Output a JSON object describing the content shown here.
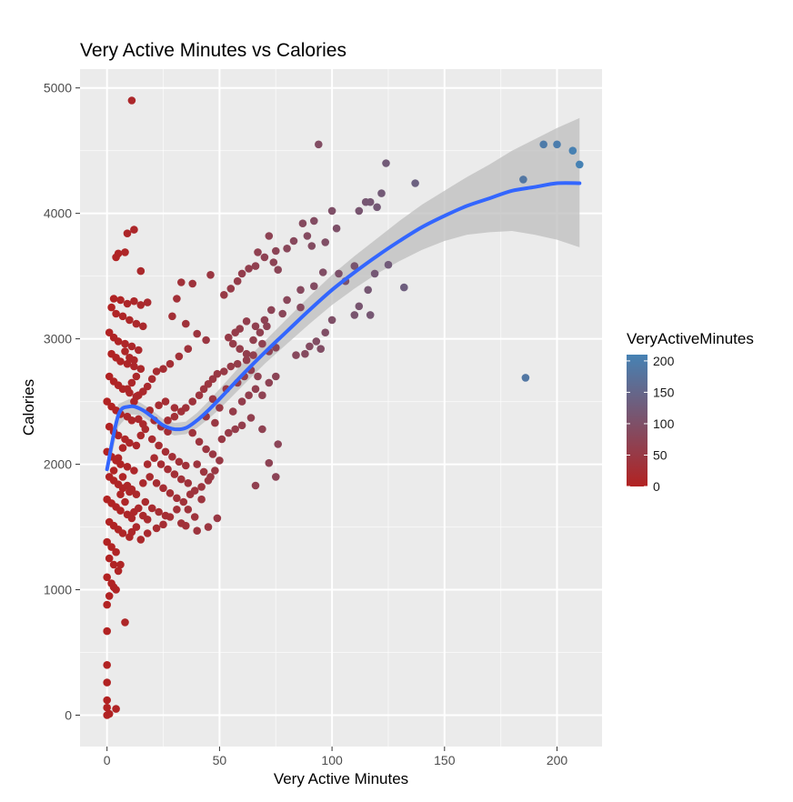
{
  "chart_data": {
    "type": "scatter",
    "title": "Very Active Minutes vs Calories",
    "xlabel": "Very Active Minutes",
    "ylabel": "Calories",
    "xlim": [
      -12,
      220
    ],
    "ylim": [
      -250,
      5150
    ],
    "xticks": [
      0,
      50,
      100,
      150,
      200
    ],
    "yticks": [
      0,
      1000,
      2000,
      3000,
      4000,
      5000
    ],
    "grid": true,
    "legend": {
      "title": "VeryActiveMinutes",
      "type": "colorbar",
      "placement": "right",
      "range": [
        0,
        210
      ],
      "ticks": [
        0,
        50,
        100,
        150,
        200
      ],
      "low_color": "#b22222",
      "high_color": "#4682b4"
    },
    "colors": {
      "panel": "#ebebeb",
      "grid_major": "#ffffff",
      "smooth_line": "#3366ff",
      "ribbon": "#bdbdbd"
    },
    "smooth": {
      "x": [
        0,
        5,
        10,
        15,
        20,
        25,
        30,
        35,
        40,
        45,
        50,
        60,
        70,
        80,
        90,
        100,
        110,
        120,
        130,
        140,
        150,
        160,
        170,
        180,
        190,
        200,
        210
      ],
      "y": [
        1960,
        2390,
        2460,
        2440,
        2380,
        2310,
        2280,
        2290,
        2350,
        2430,
        2520,
        2710,
        2890,
        3060,
        3230,
        3390,
        3530,
        3660,
        3780,
        3890,
        3980,
        4060,
        4120,
        4180,
        4210,
        4240,
        4240
      ],
      "lower": [
        1900,
        2300,
        2400,
        2390,
        2330,
        2260,
        2230,
        2240,
        2290,
        2360,
        2440,
        2620,
        2800,
        2960,
        3120,
        3270,
        3400,
        3520,
        3620,
        3710,
        3780,
        3830,
        3850,
        3860,
        3830,
        3790,
        3730
      ],
      "upper": [
        2020,
        2480,
        2520,
        2490,
        2430,
        2360,
        2330,
        2340,
        2410,
        2500,
        2600,
        2800,
        2980,
        3160,
        3340,
        3510,
        3660,
        3800,
        3940,
        4070,
        4180,
        4290,
        4390,
        4500,
        4590,
        4680,
        4760
      ]
    },
    "points": [
      [
        11,
        4900
      ],
      [
        94,
        4550
      ],
      [
        124,
        4400
      ],
      [
        137,
        4240
      ],
      [
        100,
        4020
      ],
      [
        92,
        3940
      ],
      [
        115,
        4090
      ],
      [
        112,
        4020
      ],
      [
        120,
        4050
      ],
      [
        117,
        4090
      ],
      [
        122,
        4160
      ],
      [
        102,
        3880
      ],
      [
        87,
        3920
      ],
      [
        89,
        3820
      ],
      [
        83,
        3780
      ],
      [
        91,
        3740
      ],
      [
        97,
        3770
      ],
      [
        80,
        3720
      ],
      [
        75,
        3700
      ],
      [
        72,
        3820
      ],
      [
        67,
        3690
      ],
      [
        70,
        3650
      ],
      [
        74,
        3610
      ],
      [
        76,
        3550
      ],
      [
        66,
        3580
      ],
      [
        63,
        3560
      ],
      [
        60,
        3520
      ],
      [
        58,
        3460
      ],
      [
        55,
        3400
      ],
      [
        52,
        3350
      ],
      [
        125,
        3590
      ],
      [
        119,
        3520
      ],
      [
        110,
        3580
      ],
      [
        103,
        3520
      ],
      [
        106,
        3460
      ],
      [
        96,
        3530
      ],
      [
        92,
        3420
      ],
      [
        86,
        3390
      ],
      [
        80,
        3310
      ],
      [
        86,
        3250
      ],
      [
        78,
        3200
      ],
      [
        73,
        3230
      ],
      [
        70,
        3150
      ],
      [
        66,
        3100
      ],
      [
        62,
        3140
      ],
      [
        59,
        3080
      ],
      [
        57,
        3050
      ],
      [
        54,
        3010
      ],
      [
        132,
        3410
      ],
      [
        116,
        3390
      ],
      [
        112,
        3260
      ],
      [
        117,
        3190
      ],
      [
        110,
        3190
      ],
      [
        100,
        3150
      ],
      [
        97,
        3050
      ],
      [
        93,
        2980
      ],
      [
        90,
        2940
      ],
      [
        95,
        2920
      ],
      [
        88,
        2880
      ],
      [
        84,
        2870
      ],
      [
        75,
        2930
      ],
      [
        72,
        2900
      ],
      [
        69,
        2960
      ],
      [
        65,
        2870
      ],
      [
        62,
        2830
      ],
      [
        58,
        2800
      ],
      [
        55,
        2780
      ],
      [
        52,
        2740
      ],
      [
        49,
        2720
      ],
      [
        47,
        2680
      ],
      [
        45,
        2640
      ],
      [
        43,
        2600
      ],
      [
        186,
        2690
      ],
      [
        185,
        4270
      ],
      [
        194,
        4550
      ],
      [
        200,
        4550
      ],
      [
        207,
        4500
      ],
      [
        210,
        4390
      ],
      [
        46,
        3510
      ],
      [
        38,
        3440
      ],
      [
        33,
        3450
      ],
      [
        31,
        3320
      ],
      [
        29,
        3180
      ],
      [
        35,
        3120
      ],
      [
        40,
        3040
      ],
      [
        44,
        2990
      ],
      [
        36,
        2920
      ],
      [
        32,
        2860
      ],
      [
        28,
        2800
      ],
      [
        25,
        2760
      ],
      [
        22,
        2740
      ],
      [
        20,
        2680
      ],
      [
        18,
        2620
      ],
      [
        16,
        2580
      ],
      [
        14,
        2550
      ],
      [
        12,
        2500
      ],
      [
        41,
        2550
      ],
      [
        38,
        2500
      ],
      [
        35,
        2450
      ],
      [
        33,
        2420
      ],
      [
        30,
        2380
      ],
      [
        27,
        2350
      ],
      [
        64,
        2370
      ],
      [
        60,
        2310
      ],
      [
        57,
        2280
      ],
      [
        69,
        2280
      ],
      [
        76,
        2160
      ],
      [
        72,
        2010
      ],
      [
        75,
        1900
      ],
      [
        66,
        1830
      ],
      [
        50,
        2030
      ],
      [
        48,
        1950
      ],
      [
        45,
        1870
      ],
      [
        42,
        1820
      ],
      [
        37,
        1760
      ],
      [
        34,
        1700
      ],
      [
        31,
        1640
      ],
      [
        28,
        1580
      ],
      [
        25,
        1520
      ],
      [
        22,
        1490
      ],
      [
        49,
        1570
      ],
      [
        45,
        1500
      ],
      [
        40,
        1470
      ],
      [
        35,
        1510
      ],
      [
        18,
        1450
      ],
      [
        15,
        1400
      ],
      [
        9,
        3840
      ],
      [
        12,
        3870
      ],
      [
        5,
        3680
      ],
      [
        4,
        3650
      ],
      [
        8,
        3690
      ],
      [
        15,
        3540
      ],
      [
        3,
        3320
      ],
      [
        6,
        3310
      ],
      [
        9,
        3280
      ],
      [
        12,
        3300
      ],
      [
        15,
        3270
      ],
      [
        18,
        3290
      ],
      [
        2,
        3250
      ],
      [
        4,
        3200
      ],
      [
        7,
        3180
      ],
      [
        10,
        3150
      ],
      [
        13,
        3120
      ],
      [
        16,
        3100
      ],
      [
        1,
        3050
      ],
      [
        3,
        3010
      ],
      [
        5,
        2980
      ],
      [
        8,
        2960
      ],
      [
        11,
        2940
      ],
      [
        14,
        2910
      ],
      [
        2,
        2880
      ],
      [
        4,
        2850
      ],
      [
        6,
        2820
      ],
      [
        9,
        2800
      ],
      [
        12,
        2780
      ],
      [
        15,
        2760
      ],
      [
        1,
        2700
      ],
      [
        3,
        2660
      ],
      [
        5,
        2630
      ],
      [
        7,
        2600
      ],
      [
        10,
        2570
      ],
      [
        13,
        2540
      ],
      [
        0,
        2500
      ],
      [
        2,
        2460
      ],
      [
        4,
        2430
      ],
      [
        6,
        2400
      ],
      [
        9,
        2380
      ],
      [
        11,
        2350
      ],
      [
        1,
        2300
      ],
      [
        3,
        2260
      ],
      [
        5,
        2230
      ],
      [
        8,
        2200
      ],
      [
        10,
        2170
      ],
      [
        13,
        2150
      ],
      [
        0,
        2100
      ],
      [
        2,
        2060
      ],
      [
        4,
        2030
      ],
      [
        6,
        2000
      ],
      [
        9,
        1980
      ],
      [
        12,
        1950
      ],
      [
        1,
        1900
      ],
      [
        3,
        1870
      ],
      [
        5,
        1840
      ],
      [
        7,
        1810
      ],
      [
        10,
        1780
      ],
      [
        13,
        1760
      ],
      [
        0,
        1720
      ],
      [
        2,
        1690
      ],
      [
        4,
        1660
      ],
      [
        6,
        1630
      ],
      [
        9,
        1600
      ],
      [
        11,
        1570
      ],
      [
        1,
        1540
      ],
      [
        3,
        1510
      ],
      [
        5,
        1480
      ],
      [
        7,
        1450
      ],
      [
        10,
        1420
      ],
      [
        0,
        1380
      ],
      [
        2,
        1340
      ],
      [
        4,
        1300
      ],
      [
        1,
        1250
      ],
      [
        3,
        1200
      ],
      [
        5,
        1150
      ],
      [
        0,
        1100
      ],
      [
        2,
        1050
      ],
      [
        4,
        1000
      ],
      [
        1,
        950
      ],
      [
        0,
        880
      ],
      [
        6,
        1200
      ],
      [
        3,
        1020
      ],
      [
        8,
        740
      ],
      [
        0,
        670
      ],
      [
        0,
        400
      ],
      [
        0,
        260
      ],
      [
        0,
        120
      ],
      [
        0,
        60
      ],
      [
        4,
        50
      ],
      [
        0,
        0
      ],
      [
        1,
        10
      ],
      [
        20,
        2200
      ],
      [
        23,
        2150
      ],
      [
        26,
        2100
      ],
      [
        29,
        2060
      ],
      [
        32,
        2020
      ],
      [
        35,
        1990
      ],
      [
        21,
        2050
      ],
      [
        24,
        2000
      ],
      [
        27,
        1960
      ],
      [
        30,
        1920
      ],
      [
        33,
        1880
      ],
      [
        36,
        1850
      ],
      [
        19,
        1900
      ],
      [
        22,
        1850
      ],
      [
        25,
        1810
      ],
      [
        28,
        1770
      ],
      [
        31,
        1730
      ],
      [
        17,
        1700
      ],
      [
        20,
        1650
      ],
      [
        23,
        1620
      ],
      [
        26,
        1590
      ],
      [
        16,
        1850
      ],
      [
        18,
        2000
      ],
      [
        21,
        2350
      ],
      [
        24,
        2300
      ],
      [
        27,
        2260
      ],
      [
        30,
        2450
      ],
      [
        26,
        2500
      ],
      [
        23,
        2470
      ],
      [
        19,
        2430
      ],
      [
        38,
        2250
      ],
      [
        41,
        2180
      ],
      [
        44,
        2120
      ],
      [
        47,
        2080
      ],
      [
        40,
        2000
      ],
      [
        43,
        1940
      ],
      [
        46,
        1900
      ],
      [
        39,
        1790
      ],
      [
        42,
        1720
      ],
      [
        36,
        1640
      ],
      [
        39,
        1580
      ],
      [
        33,
        1530
      ],
      [
        51,
        2200
      ],
      [
        54,
        2250
      ],
      [
        48,
        2330
      ],
      [
        44,
        2380
      ],
      [
        50,
        2450
      ],
      [
        47,
        2520
      ],
      [
        56,
        2420
      ],
      [
        53,
        2600
      ],
      [
        58,
        2650
      ],
      [
        61,
        2700
      ],
      [
        64,
        2750
      ],
      [
        67,
        2700
      ],
      [
        60,
        2500
      ],
      [
        63,
        2550
      ],
      [
        66,
        2600
      ],
      [
        69,
        2550
      ],
      [
        72,
        2650
      ],
      [
        75,
        2700
      ],
      [
        56,
        2960
      ],
      [
        59,
        2920
      ],
      [
        62,
        2880
      ],
      [
        65,
        2990
      ],
      [
        68,
        3050
      ],
      [
        71,
        3100
      ],
      [
        9,
        2600
      ],
      [
        11,
        2650
      ],
      [
        13,
        2700
      ],
      [
        8,
        2900
      ],
      [
        10,
        2850
      ],
      [
        12,
        2830
      ],
      [
        14,
        2360
      ],
      [
        16,
        2320
      ],
      [
        17,
        2280
      ],
      [
        15,
        2230
      ],
      [
        7,
        2130
      ],
      [
        5,
        2050
      ],
      [
        3,
        1950
      ],
      [
        7,
        1900
      ],
      [
        9,
        1830
      ],
      [
        11,
        1800
      ],
      [
        6,
        1760
      ],
      [
        8,
        1700
      ],
      [
        14,
        1650
      ],
      [
        12,
        1620
      ],
      [
        16,
        1590
      ],
      [
        18,
        1560
      ],
      [
        13,
        1500
      ],
      [
        11,
        1460
      ]
    ]
  }
}
